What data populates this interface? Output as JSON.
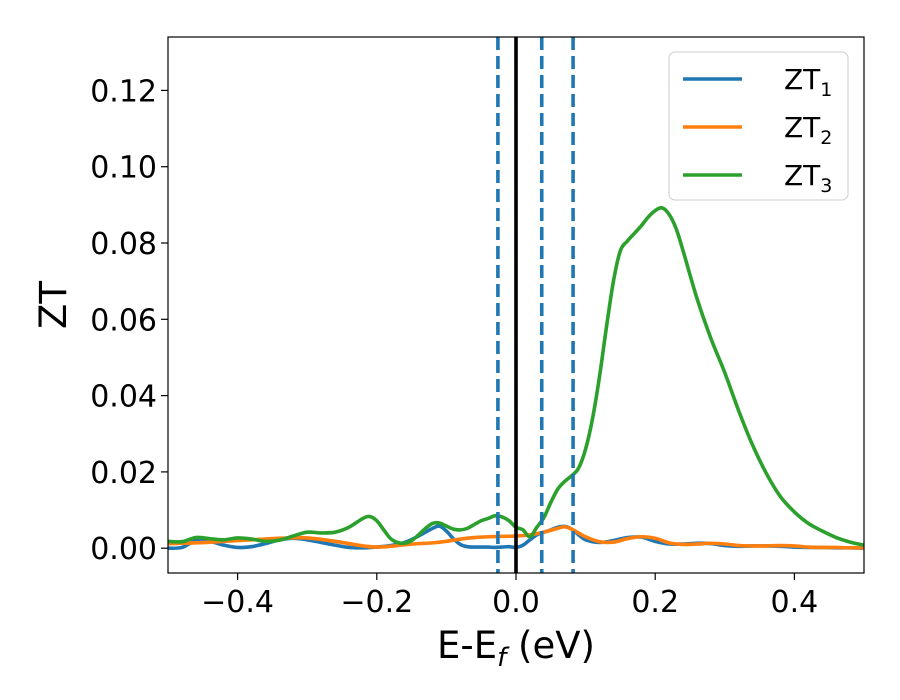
{
  "chart_data": {
    "type": "line",
    "title": "",
    "xlabel": {
      "main": "E-E",
      "sub": "f",
      "suffix": " (eV)"
    },
    "ylabel": "ZT",
    "xlim": [
      -0.5,
      0.5
    ],
    "ylim": [
      -0.0065,
      0.134
    ],
    "xticks": [
      {
        "value": -0.4,
        "label": "−0.4"
      },
      {
        "value": -0.2,
        "label": "−0.2"
      },
      {
        "value": 0.0,
        "label": "0.0"
      },
      {
        "value": 0.2,
        "label": "0.2"
      },
      {
        "value": 0.4,
        "label": "0.4"
      }
    ],
    "yticks": [
      {
        "value": 0.0,
        "label": "0.00"
      },
      {
        "value": 0.02,
        "label": "0.02"
      },
      {
        "value": 0.04,
        "label": "0.04"
      },
      {
        "value": 0.06,
        "label": "0.06"
      },
      {
        "value": 0.08,
        "label": "0.08"
      },
      {
        "value": 0.1,
        "label": "0.10"
      },
      {
        "value": 0.12,
        "label": "0.12"
      }
    ],
    "grid": false,
    "legend_position": "top-right",
    "vertical_lines": [
      {
        "x": 0.0,
        "style": "solid",
        "color": "#000000"
      },
      {
        "x": -0.026,
        "style": "dashed",
        "color": "#1f77b4"
      },
      {
        "x": 0.037,
        "style": "dashed",
        "color": "#1f77b4"
      },
      {
        "x": 0.082,
        "style": "dashed",
        "color": "#1f77b4"
      }
    ],
    "series": [
      {
        "name": "ZT",
        "subscript": "1",
        "color": "#1f77b4",
        "x": [
          -0.5,
          -0.48,
          -0.46,
          -0.44,
          -0.42,
          -0.4,
          -0.38,
          -0.36,
          -0.34,
          -0.32,
          -0.3,
          -0.28,
          -0.26,
          -0.24,
          -0.22,
          -0.2,
          -0.18,
          -0.16,
          -0.14,
          -0.12,
          -0.11,
          -0.1,
          -0.09,
          -0.08,
          -0.07,
          -0.06,
          -0.05,
          -0.04,
          -0.03,
          -0.02,
          -0.01,
          0.0,
          0.01,
          0.02,
          0.03,
          0.04,
          0.05,
          0.06,
          0.07,
          0.08,
          0.09,
          0.1,
          0.12,
          0.14,
          0.16,
          0.18,
          0.2,
          0.22,
          0.24,
          0.26,
          0.28,
          0.3,
          0.32,
          0.34,
          0.36,
          0.38,
          0.4,
          0.42,
          0.44,
          0.46,
          0.48,
          0.5
        ],
        "y": [
          0.0,
          0.0002,
          0.002,
          0.0018,
          0.0008,
          0.0002,
          0.0004,
          0.0012,
          0.0022,
          0.0026,
          0.0022,
          0.0015,
          0.0008,
          0.0002,
          0.0001,
          0.0003,
          0.0007,
          0.0015,
          0.0032,
          0.0052,
          0.0058,
          0.0045,
          0.0025,
          0.001,
          0.0004,
          0.0003,
          0.0003,
          0.0003,
          0.0002,
          0.0003,
          0.0004,
          0.0002,
          0.0008,
          0.0022,
          0.0035,
          0.0042,
          0.0048,
          0.0055,
          0.0057,
          0.005,
          0.0035,
          0.0022,
          0.0015,
          0.002,
          0.0028,
          0.0029,
          0.0018,
          0.0011,
          0.0011,
          0.0013,
          0.0012,
          0.0007,
          0.0005,
          0.0006,
          0.0006,
          0.0005,
          0.0003,
          0.0002,
          0.0002,
          0.0001,
          0.0001,
          0.0
        ]
      },
      {
        "name": "ZT",
        "subscript": "2",
        "color": "#ff7f0e",
        "x": [
          -0.5,
          -0.46,
          -0.42,
          -0.38,
          -0.34,
          -0.3,
          -0.26,
          -0.22,
          -0.2,
          -0.18,
          -0.16,
          -0.14,
          -0.12,
          -0.1,
          -0.08,
          -0.06,
          -0.04,
          -0.02,
          0.0,
          0.02,
          0.04,
          0.06,
          0.07,
          0.08,
          0.1,
          0.12,
          0.14,
          0.16,
          0.18,
          0.2,
          0.22,
          0.24,
          0.26,
          0.28,
          0.3,
          0.32,
          0.34,
          0.36,
          0.38,
          0.4,
          0.42,
          0.44,
          0.46,
          0.48,
          0.5
        ],
        "y": [
          0.0012,
          0.0014,
          0.0018,
          0.0022,
          0.0026,
          0.0027,
          0.0018,
          0.0006,
          0.0003,
          0.0005,
          0.0009,
          0.0012,
          0.0014,
          0.0018,
          0.0024,
          0.0028,
          0.003,
          0.0031,
          0.0032,
          0.0035,
          0.0042,
          0.0052,
          0.0056,
          0.005,
          0.003,
          0.0017,
          0.0016,
          0.0025,
          0.003,
          0.0026,
          0.0014,
          0.001,
          0.0011,
          0.0013,
          0.0011,
          0.0007,
          0.0006,
          0.0006,
          0.0007,
          0.0006,
          0.0003,
          0.0002,
          0.0002,
          0.0001,
          0.0001
        ]
      },
      {
        "name": "ZT",
        "subscript": "3",
        "color": "#2ca02c",
        "x": [
          -0.5,
          -0.48,
          -0.46,
          -0.44,
          -0.42,
          -0.4,
          -0.38,
          -0.36,
          -0.34,
          -0.32,
          -0.3,
          -0.28,
          -0.26,
          -0.24,
          -0.22,
          -0.21,
          -0.2,
          -0.19,
          -0.18,
          -0.17,
          -0.16,
          -0.15,
          -0.14,
          -0.13,
          -0.12,
          -0.11,
          -0.1,
          -0.09,
          -0.08,
          -0.07,
          -0.06,
          -0.05,
          -0.04,
          -0.03,
          -0.02,
          -0.01,
          0.0,
          0.01,
          0.02,
          0.03,
          0.04,
          0.05,
          0.06,
          0.07,
          0.08,
          0.09,
          0.1,
          0.11,
          0.12,
          0.13,
          0.14,
          0.15,
          0.16,
          0.17,
          0.18,
          0.19,
          0.2,
          0.21,
          0.22,
          0.23,
          0.24,
          0.26,
          0.28,
          0.3,
          0.32,
          0.34,
          0.36,
          0.38,
          0.4,
          0.42,
          0.44,
          0.46,
          0.48,
          0.5
        ],
        "y": [
          0.0018,
          0.0017,
          0.0028,
          0.0025,
          0.0022,
          0.0027,
          0.0024,
          0.0018,
          0.0021,
          0.0032,
          0.0042,
          0.004,
          0.0042,
          0.0055,
          0.0078,
          0.0083,
          0.0072,
          0.0048,
          0.0025,
          0.0015,
          0.0013,
          0.002,
          0.0035,
          0.0052,
          0.0065,
          0.0066,
          0.0058,
          0.005,
          0.0048,
          0.0052,
          0.0062,
          0.0072,
          0.0078,
          0.0085,
          0.0082,
          0.0072,
          0.0055,
          0.0048,
          0.003,
          0.0055,
          0.008,
          0.012,
          0.0155,
          0.0175,
          0.019,
          0.021,
          0.026,
          0.034,
          0.045,
          0.058,
          0.07,
          0.078,
          0.0805,
          0.0825,
          0.0845,
          0.0868,
          0.0885,
          0.0892,
          0.0875,
          0.0838,
          0.078,
          0.0655,
          0.055,
          0.046,
          0.036,
          0.027,
          0.0195,
          0.0135,
          0.0095,
          0.0065,
          0.0045,
          0.0028,
          0.0016,
          0.0008
        ]
      }
    ]
  }
}
